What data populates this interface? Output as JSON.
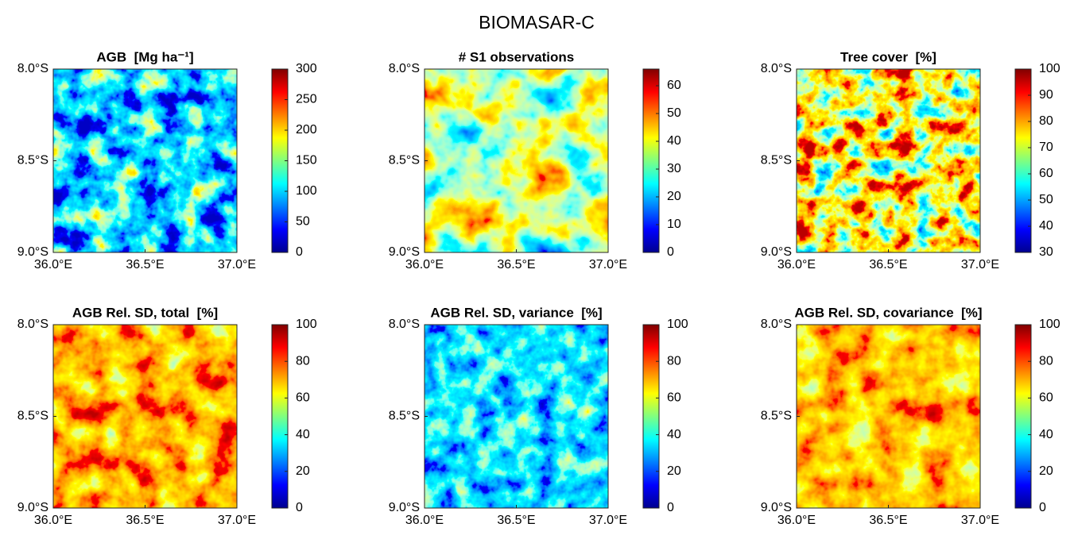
{
  "title": "BIOMASAR-C",
  "chart_data": [
    {
      "type": "map",
      "title": "AGB  [Mg ha⁻¹]",
      "colormap": "jet",
      "xlim": [
        36.0,
        37.0
      ],
      "xticks": [
        {
          "value": 36.0,
          "label": "36.0°E"
        },
        {
          "value": 36.5,
          "label": "36.5°E"
        },
        {
          "value": 37.0,
          "label": "37.0°E"
        }
      ],
      "ylim": [
        -9.0,
        -8.0
      ],
      "yticks": [
        {
          "value": -8.0,
          "label": "8.0°S"
        },
        {
          "value": -8.5,
          "label": "8.5°S"
        },
        {
          "value": -9.0,
          "label": "9.0°S"
        }
      ],
      "clim": [
        0,
        300
      ],
      "cticks": [
        0,
        50,
        100,
        150,
        200,
        250,
        300
      ]
    },
    {
      "type": "map",
      "title": "# S1 observations",
      "colormap": "jet",
      "xlim": [
        36.0,
        37.0
      ],
      "xticks": [
        {
          "value": 36.0,
          "label": "36.0°E"
        },
        {
          "value": 36.5,
          "label": "36.5°E"
        },
        {
          "value": 37.0,
          "label": "37.0°E"
        }
      ],
      "ylim": [
        -9.0,
        -8.0
      ],
      "yticks": [
        {
          "value": -8.0,
          "label": "8.0°S"
        },
        {
          "value": -8.5,
          "label": "8.5°S"
        },
        {
          "value": -9.0,
          "label": "9.0°S"
        }
      ],
      "clim": [
        0,
        66
      ],
      "cticks": [
        0,
        10,
        20,
        30,
        40,
        50,
        60
      ]
    },
    {
      "type": "map",
      "title": "Tree cover  [%]",
      "colormap": "jet",
      "xlim": [
        36.0,
        37.0
      ],
      "xticks": [
        {
          "value": 36.0,
          "label": "36.0°E"
        },
        {
          "value": 36.5,
          "label": "36.5°E"
        },
        {
          "value": 37.0,
          "label": "37.0°E"
        }
      ],
      "ylim": [
        -9.0,
        -8.0
      ],
      "yticks": [
        {
          "value": -8.0,
          "label": "8.0°S"
        },
        {
          "value": -8.5,
          "label": "8.5°S"
        },
        {
          "value": -9.0,
          "label": "9.0°S"
        }
      ],
      "clim": [
        30,
        100
      ],
      "cticks": [
        30,
        40,
        50,
        60,
        70,
        80,
        90,
        100
      ]
    },
    {
      "type": "map",
      "title": "AGB Rel. SD, total  [%]",
      "colormap": "jet",
      "xlim": [
        36.0,
        37.0
      ],
      "xticks": [
        {
          "value": 36.0,
          "label": "36.0°E"
        },
        {
          "value": 36.5,
          "label": "36.5°E"
        },
        {
          "value": 37.0,
          "label": "37.0°E"
        }
      ],
      "ylim": [
        -9.0,
        -8.0
      ],
      "yticks": [
        {
          "value": -8.0,
          "label": "8.0°S"
        },
        {
          "value": -8.5,
          "label": "8.5°S"
        },
        {
          "value": -9.0,
          "label": "9.0°S"
        }
      ],
      "clim": [
        0,
        100
      ],
      "cticks": [
        0,
        20,
        40,
        60,
        80,
        100
      ]
    },
    {
      "type": "map",
      "title": "AGB Rel. SD, variance  [%]",
      "colormap": "jet",
      "xlim": [
        36.0,
        37.0
      ],
      "xticks": [
        {
          "value": 36.0,
          "label": "36.0°E"
        },
        {
          "value": 36.5,
          "label": "36.5°E"
        },
        {
          "value": 37.0,
          "label": "37.0°E"
        }
      ],
      "ylim": [
        -9.0,
        -8.0
      ],
      "yticks": [
        {
          "value": -8.0,
          "label": "8.0°S"
        },
        {
          "value": -8.5,
          "label": "8.5°S"
        },
        {
          "value": -9.0,
          "label": "9.0°S"
        }
      ],
      "clim": [
        0,
        100
      ],
      "cticks": [
        0,
        20,
        40,
        60,
        80,
        100
      ]
    },
    {
      "type": "map",
      "title": "AGB Rel. SD, covariance  [%]",
      "colormap": "jet",
      "xlim": [
        36.0,
        37.0
      ],
      "xticks": [
        {
          "value": 36.0,
          "label": "36.0°E"
        },
        {
          "value": 36.5,
          "label": "36.5°E"
        },
        {
          "value": 37.0,
          "label": "37.0°E"
        }
      ],
      "ylim": [
        -9.0,
        -8.0
      ],
      "yticks": [
        {
          "value": -8.0,
          "label": "8.0°S"
        },
        {
          "value": -8.5,
          "label": "8.5°S"
        },
        {
          "value": -9.0,
          "label": "9.0°S"
        }
      ],
      "clim": [
        0,
        100
      ],
      "cticks": [
        0,
        20,
        40,
        60,
        80,
        100
      ]
    }
  ]
}
